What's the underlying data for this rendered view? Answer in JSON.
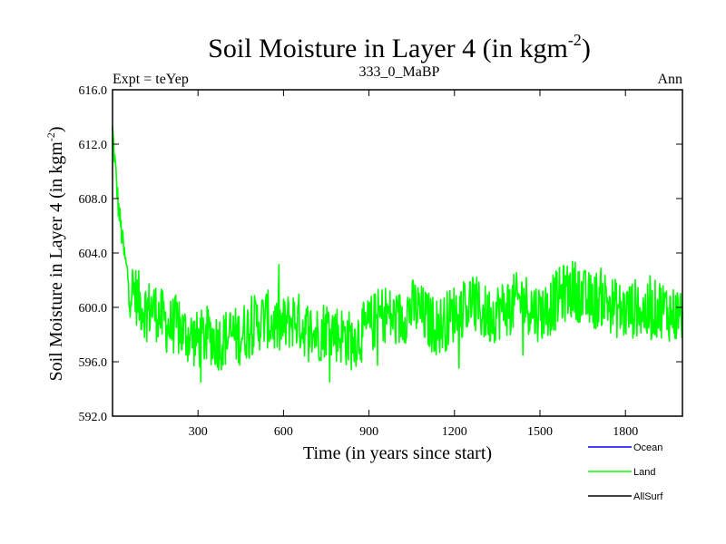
{
  "chart_data": {
    "type": "line",
    "title": {
      "main": "Soil Moisture in Layer 4 (in kgm",
      "sup": "-2",
      "close": ")"
    },
    "subtitle_left": "Expt = teYep",
    "subtitle_center": "333_0_MaBP",
    "subtitle_right": "Ann",
    "xlabel": "Time (in years since start)",
    "ylabel": {
      "main": "Soil Moisture in Layer 4 (in kgm",
      "sup": "-2",
      "close": ")"
    },
    "xlim": [
      0,
      2000
    ],
    "ylim": [
      592.0,
      616.0
    ],
    "x_ticks": [
      300,
      600,
      900,
      1200,
      1500,
      1800
    ],
    "x_tick_labels": [
      "300",
      "600",
      "900",
      "1200",
      "1500",
      "1800"
    ],
    "y_ticks": [
      592,
      596,
      600,
      604,
      608,
      612,
      616
    ],
    "y_tick_labels": [
      "592.0",
      "596.0",
      "600.0",
      "604.0",
      "608.0",
      "612.0",
      "616.0"
    ],
    "grid": false,
    "legend_position": "bottom-right",
    "series": [
      {
        "name": "Land",
        "color": "#00ff00",
        "x_start": 0,
        "x_step": 20,
        "values": [
          613.0,
          607.5,
          604.0,
          601.5,
          601.0,
          600.2,
          599.8,
          600.0,
          599.5,
          599.0,
          598.5,
          598.8,
          598.2,
          598.0,
          597.8,
          597.5,
          597.8,
          598.0,
          597.6,
          597.5,
          597.8,
          598.0,
          597.8,
          598.2,
          598.5,
          598.8,
          599.0,
          599.2,
          598.8,
          598.5,
          598.6,
          599.0,
          599.2,
          598.8,
          598.4,
          598.2,
          598.0,
          598.4,
          598.6,
          598.2,
          598.0,
          597.8,
          597.5,
          597.9,
          598.2,
          598.6,
          599.0,
          599.4,
          599.6,
          599.2,
          599.0,
          599.4,
          599.8,
          600.0,
          599.6,
          599.2,
          598.8,
          598.6,
          598.8,
          599.2,
          599.6,
          599.8,
          600.2,
          600.4,
          600.0,
          599.6,
          599.4,
          599.6,
          599.8,
          600.0,
          600.2,
          600.4,
          600.6,
          600.2,
          599.8,
          599.6,
          599.8,
          600.2,
          600.6,
          601.0,
          601.2,
          601.4,
          601.0,
          600.6,
          600.4,
          600.6,
          600.8,
          600.4,
          600.0,
          599.8,
          599.6,
          599.8,
          600.0,
          599.7,
          599.5,
          599.8,
          600.0,
          599.8,
          599.6,
          599.4,
          599.6
        ]
      },
      {
        "name": "Ocean",
        "color": "#0000ff",
        "values": []
      },
      {
        "name": "AllSurf",
        "color": "#000000",
        "values": []
      }
    ]
  }
}
